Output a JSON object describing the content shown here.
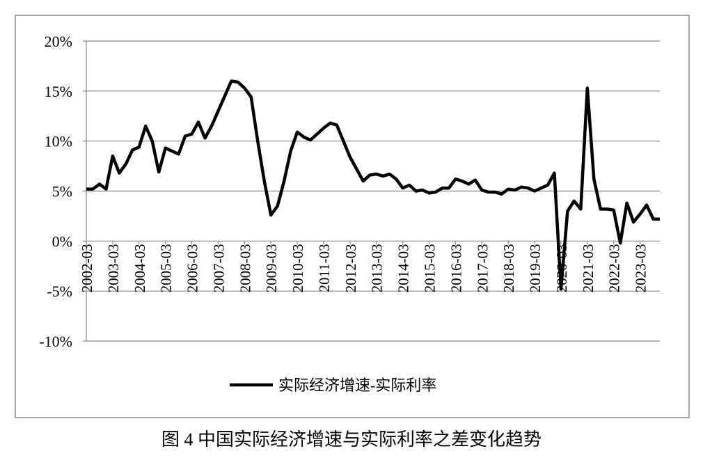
{
  "chart_data": {
    "type": "line",
    "caption": "图 4  中国实际经济增速与实际利率之差变化趋势",
    "categories": [
      "2002-03",
      null,
      null,
      null,
      "2003-03",
      null,
      null,
      null,
      "2004-03",
      null,
      null,
      null,
      "2005-03",
      null,
      null,
      null,
      "2006-03",
      null,
      null,
      null,
      "2007-03",
      null,
      null,
      null,
      "2008-03",
      null,
      null,
      null,
      "2009-03",
      null,
      null,
      null,
      "2010-03",
      null,
      null,
      null,
      "2011-03",
      null,
      null,
      null,
      "2012-03",
      null,
      null,
      null,
      "2013-03",
      null,
      null,
      null,
      "2014-03",
      null,
      null,
      null,
      "2015-03",
      null,
      null,
      null,
      "2016-03",
      null,
      null,
      null,
      "2017-03",
      null,
      null,
      null,
      "2018-03",
      null,
      null,
      null,
      "2019-03",
      null,
      null,
      null,
      "2020-03",
      null,
      null,
      null,
      "2021-03",
      null,
      null,
      null,
      "2022-03",
      null,
      null,
      null,
      "2023-03",
      null,
      null,
      null
    ],
    "series": [
      {
        "name": "实际经济增速-实际利率",
        "color": "#000000",
        "values": [
          5.2,
          5.2,
          5.7,
          5.2,
          8.5,
          6.8,
          7.7,
          9.1,
          9.4,
          11.5,
          10.0,
          6.9,
          9.3,
          9.0,
          8.7,
          10.5,
          10.7,
          11.9,
          10.3,
          11.5,
          13.0,
          14.5,
          16.0,
          15.9,
          15.3,
          14.4,
          10.0,
          6.0,
          2.6,
          3.5,
          6.0,
          9.0,
          10.9,
          10.4,
          10.1,
          10.7,
          11.3,
          11.8,
          11.6,
          10.0,
          8.4,
          7.2,
          6.0,
          6.6,
          6.7,
          6.5,
          6.7,
          6.2,
          5.3,
          5.6,
          5.0,
          5.1,
          4.8,
          4.9,
          5.3,
          5.3,
          6.2,
          6.0,
          5.7,
          6.1,
          5.1,
          4.9,
          4.9,
          4.7,
          5.2,
          5.1,
          5.4,
          5.3,
          5.0,
          5.3,
          5.6,
          6.8,
          -4.8,
          3.0,
          4.0,
          3.2,
          15.3,
          6.2,
          3.2,
          3.2,
          3.1,
          -0.2,
          3.8,
          1.9,
          2.7,
          3.6,
          2.2,
          2.2
        ]
      }
    ],
    "ylim": [
      -10,
      20
    ],
    "yticks": [
      {
        "value": -10,
        "label": "-10%"
      },
      {
        "value": -5,
        "label": "-5%"
      },
      {
        "value": 0,
        "label": "0%"
      },
      {
        "value": 5,
        "label": "5%"
      },
      {
        "value": 10,
        "label": "10%"
      },
      {
        "value": 15,
        "label": "15%"
      },
      {
        "value": 20,
        "label": "20%"
      }
    ],
    "grid": true,
    "legend": "bottom"
  }
}
